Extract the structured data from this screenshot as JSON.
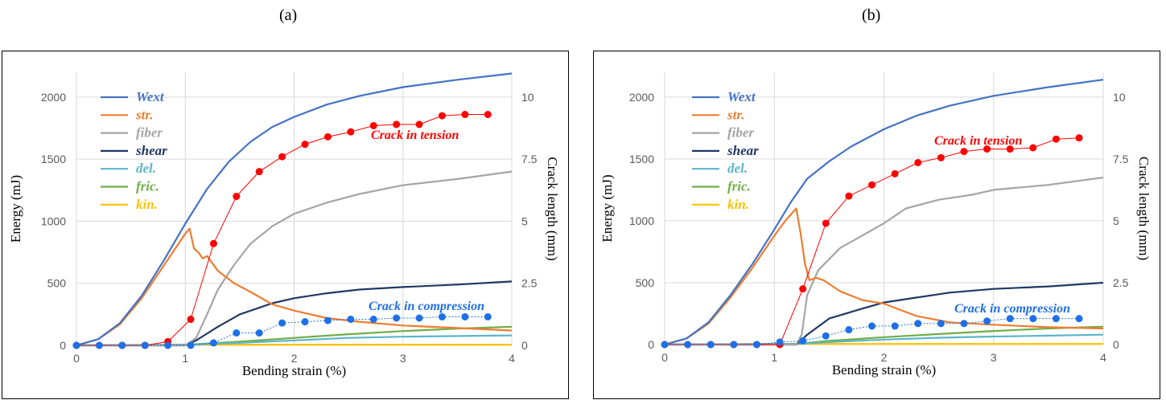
{
  "panels": [
    {
      "label": "(a)",
      "chart_data": {
        "type": "line",
        "xlabel": "Bending strain (%)",
        "ylabel": "Energy (mJ)",
        "y2label": "Crack length (mm)",
        "xlim": [
          0,
          4
        ],
        "ylim": [
          0,
          2200
        ],
        "y2lim": [
          0,
          11
        ],
        "xticks": [
          "0",
          "1",
          "2",
          "3",
          "4"
        ],
        "yticks": [
          "0",
          "500",
          "1000",
          "1500",
          "2000"
        ],
        "y2ticks": [
          "0",
          "2.5",
          "5",
          "7.5",
          "10"
        ],
        "grid": "horizontal and vertical gridlines",
        "legend_position": "top-left",
        "series": [
          {
            "name": "Wext",
            "axis": "left",
            "color": "#4472C4",
            "x": [
              0,
              0.2,
              0.4,
              0.6,
              0.8,
              1.0,
              1.2,
              1.4,
              1.6,
              1.8,
              2.0,
              2.3,
              2.6,
              3.0,
              3.5,
              4.0
            ],
            "y": [
              0,
              50,
              180,
              400,
              680,
              980,
              1260,
              1480,
              1640,
              1760,
              1840,
              1940,
              2010,
              2080,
              2140,
              2190
            ]
          },
          {
            "name": "str.",
            "axis": "left",
            "color": "#ED7D31",
            "x": [
              0,
              0.2,
              0.4,
              0.6,
              0.8,
              1.0,
              1.04,
              1.08,
              1.12,
              1.16,
              1.2,
              1.3,
              1.45,
              1.6,
              1.8,
              2.0,
              2.3,
              2.6,
              3.0,
              3.5,
              4.0
            ],
            "y": [
              0,
              50,
              170,
              380,
              640,
              900,
              940,
              780,
              750,
              700,
              720,
              600,
              500,
              430,
              330,
              280,
              220,
              190,
              160,
              140,
              120
            ]
          },
          {
            "name": "fiber",
            "axis": "left",
            "color": "#A5A5A5",
            "x": [
              0,
              1.0,
              1.1,
              1.2,
              1.3,
              1.45,
              1.6,
              1.8,
              2.0,
              2.3,
              2.6,
              3.0,
              3.5,
              4.0
            ],
            "y": [
              0,
              0,
              60,
              250,
              450,
              650,
              820,
              960,
              1060,
              1150,
              1220,
              1290,
              1340,
              1400
            ]
          },
          {
            "name": "shear",
            "axis": "left",
            "color": "#203864",
            "x": [
              0,
              1.0,
              1.1,
              1.3,
              1.5,
              1.8,
              2.0,
              2.3,
              2.6,
              3.0,
              3.5,
              4.0
            ],
            "y": [
              0,
              0,
              40,
              150,
              250,
              340,
              380,
              420,
              450,
              470,
              490,
              515
            ]
          },
          {
            "name": "del.",
            "axis": "left",
            "color": "#5BB5C9",
            "x": [
              0,
              1.0,
              1.5,
              2.0,
              2.5,
              3.0,
              3.5,
              4.0
            ],
            "y": [
              0,
              5,
              20,
              40,
              60,
              70,
              75,
              80
            ]
          },
          {
            "name": "fric.",
            "axis": "left",
            "color": "#70AD47",
            "x": [
              0,
              1.0,
              1.5,
              2.0,
              2.5,
              3.0,
              3.5,
              4.0
            ],
            "y": [
              0,
              5,
              30,
              60,
              90,
              115,
              135,
              150
            ]
          },
          {
            "name": "kin.",
            "axis": "left",
            "color": "#FFC000",
            "x": [
              0,
              1.0,
              2.0,
              3.0,
              4.0
            ],
            "y": [
              0,
              5,
              5,
              5,
              5
            ]
          },
          {
            "name": "Crack in tension",
            "axis": "right",
            "color": "#FF0000",
            "markers": true,
            "x": [
              0,
              0.21,
              0.42,
              0.63,
              0.84,
              1.05,
              1.26,
              1.47,
              1.68,
              1.89,
              2.1,
              2.31,
              2.52,
              2.73,
              2.94,
              3.15,
              3.36,
              3.57,
              3.78
            ],
            "y": [
              0,
              0,
              0,
              0,
              0.15,
              1.05,
              4.1,
              6.0,
              7.0,
              7.6,
              8.1,
              8.4,
              8.6,
              8.85,
              8.9,
              8.9,
              9.25,
              9.3,
              9.3
            ]
          },
          {
            "name": "Crack in compression",
            "axis": "right",
            "color": "#1F6FE6",
            "markers": true,
            "x": [
              0,
              0.21,
              0.42,
              0.63,
              0.84,
              1.05,
              1.26,
              1.47,
              1.68,
              1.89,
              2.1,
              2.31,
              2.52,
              2.73,
              2.94,
              3.15,
              3.36,
              3.57,
              3.78
            ],
            "y": [
              0,
              0,
              0,
              0,
              0,
              0,
              0.1,
              0.5,
              0.5,
              0.9,
              0.95,
              1.0,
              1.05,
              1.05,
              1.1,
              1.1,
              1.15,
              1.15,
              1.15
            ]
          }
        ]
      }
    },
    {
      "label": "(b)",
      "chart_data": {
        "type": "line",
        "xlabel": "Bending strain (%)",
        "ylabel": "Energy (mJ)",
        "y2label": "Crack length (mm)",
        "xlim": [
          0,
          4
        ],
        "ylim": [
          0,
          2200
        ],
        "y2lim": [
          0,
          11
        ],
        "xticks": [
          "0",
          "1",
          "2",
          "3",
          "4"
        ],
        "yticks": [
          "0",
          "500",
          "1000",
          "1500",
          "2000"
        ],
        "y2ticks": [
          "0",
          "2.5",
          "5",
          "7.5",
          "10"
        ],
        "grid": "horizontal and vertical gridlines",
        "legend_position": "top-left",
        "series": [
          {
            "name": "Wext",
            "axis": "left",
            "color": "#4472C4",
            "x": [
              0,
              0.2,
              0.4,
              0.6,
              0.8,
              1.0,
              1.15,
              1.3,
              1.5,
              1.7,
              2.0,
              2.3,
              2.6,
              3.0,
              3.5,
              4.0
            ],
            "y": [
              0,
              50,
              180,
              400,
              650,
              930,
              1150,
              1340,
              1480,
              1600,
              1740,
              1850,
              1930,
              2010,
              2080,
              2140
            ]
          },
          {
            "name": "str.",
            "axis": "left",
            "color": "#ED7D31",
            "x": [
              0,
              0.2,
              0.4,
              0.6,
              0.8,
              1.0,
              1.1,
              1.2,
              1.24,
              1.28,
              1.32,
              1.38,
              1.45,
              1.6,
              1.8,
              2.0,
              2.3,
              2.6,
              3.0,
              3.5,
              4.0
            ],
            "y": [
              0,
              50,
              170,
              380,
              620,
              880,
              1000,
              1100,
              900,
              650,
              520,
              540,
              520,
              430,
              360,
              330,
              230,
              180,
              160,
              140,
              130
            ]
          },
          {
            "name": "fiber",
            "axis": "left",
            "color": "#A5A5A5",
            "x": [
              0,
              1.2,
              1.25,
              1.3,
              1.4,
              1.6,
              1.8,
              2.0,
              2.2,
              2.5,
              2.8,
              3.0,
              3.5,
              4.0
            ],
            "y": [
              0,
              0,
              80,
              400,
              600,
              780,
              880,
              980,
              1100,
              1170,
              1210,
              1250,
              1290,
              1350
            ]
          },
          {
            "name": "shear",
            "axis": "left",
            "color": "#203864",
            "x": [
              0,
              1.2,
              1.3,
              1.5,
              1.8,
              2.0,
              2.3,
              2.6,
              3.0,
              3.5,
              4.0
            ],
            "y": [
              0,
              0,
              80,
              210,
              290,
              340,
              380,
              420,
              450,
              470,
              500
            ]
          },
          {
            "name": "del.",
            "axis": "left",
            "color": "#5BB5C9",
            "x": [
              0,
              1.2,
              1.5,
              2.0,
              2.5,
              3.0,
              3.5,
              4.0
            ],
            "y": [
              0,
              5,
              20,
              40,
              55,
              65,
              72,
              80
            ]
          },
          {
            "name": "fric.",
            "axis": "left",
            "color": "#70AD47",
            "x": [
              0,
              1.2,
              1.5,
              2.0,
              2.5,
              3.0,
              3.5,
              4.0
            ],
            "y": [
              0,
              5,
              30,
              60,
              85,
              110,
              130,
              145
            ]
          },
          {
            "name": "kin.",
            "axis": "left",
            "color": "#FFC000",
            "x": [
              0,
              1.0,
              2.0,
              3.0,
              4.0
            ],
            "y": [
              0,
              5,
              5,
              5,
              5
            ]
          },
          {
            "name": "Crack in tension",
            "axis": "right",
            "color": "#FF0000",
            "markers": true,
            "x": [
              0,
              0.21,
              0.42,
              0.63,
              0.84,
              1.05,
              1.26,
              1.47,
              1.68,
              1.89,
              2.1,
              2.31,
              2.52,
              2.73,
              2.94,
              3.15,
              3.36,
              3.57,
              3.78
            ],
            "y": [
              0,
              0,
              0,
              0,
              0,
              0,
              2.25,
              4.9,
              6.0,
              6.45,
              6.9,
              7.35,
              7.55,
              7.8,
              7.9,
              7.9,
              7.95,
              8.3,
              8.35
            ]
          },
          {
            "name": "Crack in compression",
            "axis": "right",
            "color": "#1F6FE6",
            "markers": true,
            "x": [
              0,
              0.21,
              0.42,
              0.63,
              0.84,
              1.05,
              1.26,
              1.47,
              1.68,
              1.89,
              2.1,
              2.31,
              2.52,
              2.73,
              2.94,
              3.15,
              3.36,
              3.57,
              3.78
            ],
            "y": [
              0,
              0,
              0,
              0,
              0,
              0.1,
              0.15,
              0.35,
              0.6,
              0.75,
              0.75,
              0.85,
              0.85,
              0.85,
              0.95,
              1.05,
              1.05,
              1.05,
              1.05
            ]
          }
        ]
      }
    }
  ],
  "legend_entries": [
    "Wext",
    "str.",
    "fiber",
    "shear",
    "del.",
    "fric.",
    "kin."
  ],
  "annotations": {
    "tension_label": "Crack in tension",
    "compression_label": "Crack in compression"
  }
}
